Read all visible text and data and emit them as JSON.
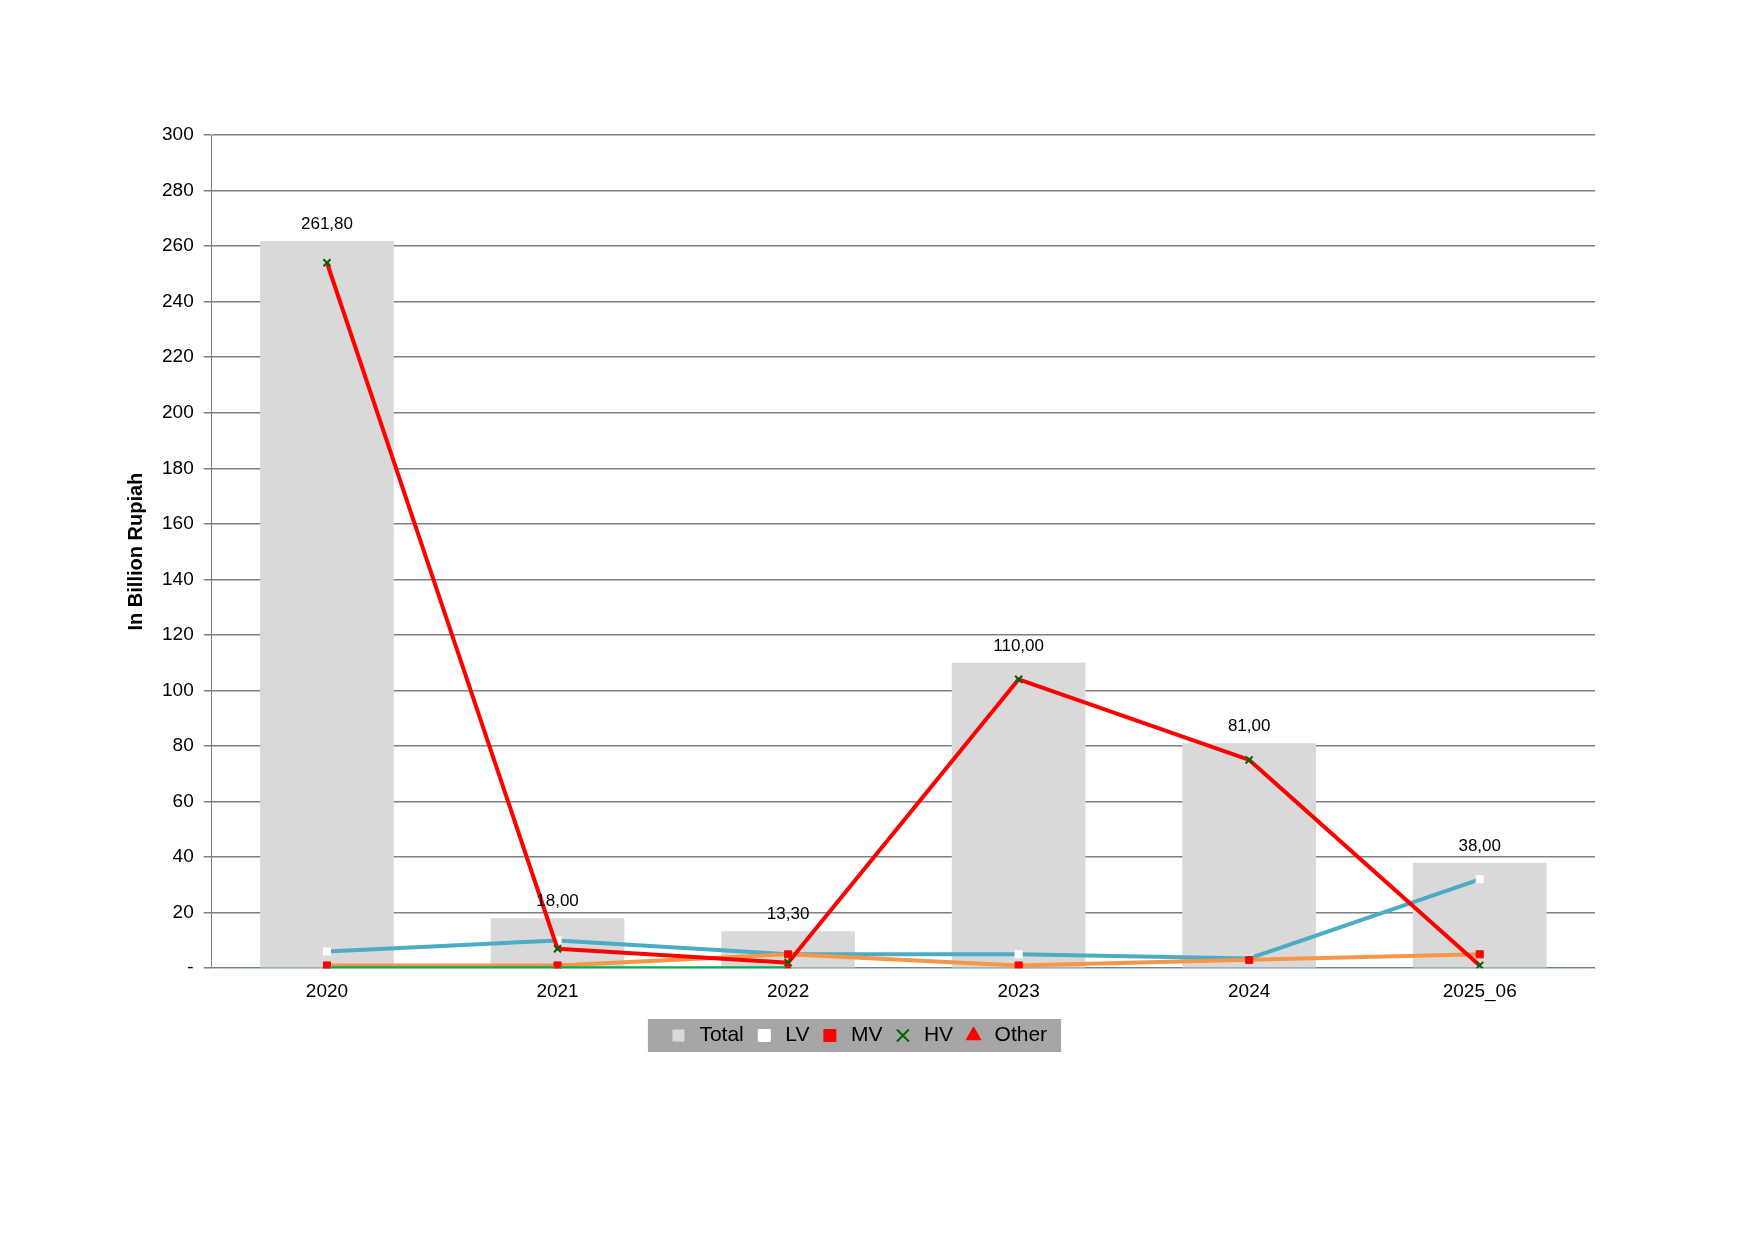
{
  "chart_data": {
    "type": "bar",
    "ylabel": "In Billion Rupiah",
    "categories": [
      "2020",
      "2021",
      "2022",
      "2023",
      "2024",
      "2025_06"
    ],
    "series": [
      {
        "name": "Total",
        "color": "#d9d9d9",
        "values": [
          261.8,
          18,
          13.3,
          110,
          81,
          38
        ],
        "value_labels": [
          "261,80",
          "18,00",
          "13,30",
          "110,00",
          "81,00",
          "38,00"
        ]
      },
      {
        "name": "LV",
        "type": "line",
        "color": "#4bacc6",
        "marker": "square",
        "values": [
          6,
          10,
          5,
          5,
          3.5,
          32
        ]
      },
      {
        "name": "MV",
        "type": "line",
        "color": "#f79646",
        "marker": "square",
        "values": [
          1,
          1,
          5,
          1,
          3,
          5
        ]
      },
      {
        "name": "HV",
        "type": "line",
        "color": "#ff0000",
        "marker": "cross",
        "values": [
          254,
          7,
          2,
          104,
          75,
          1
        ]
      },
      {
        "name": "Other",
        "type": "line",
        "color": "#00b050",
        "marker": "triangle",
        "values": [
          0,
          0,
          0,
          null,
          null,
          null
        ]
      }
    ],
    "ylim": [
      0,
      300
    ],
    "yticks": [
      {
        "value": 0,
        "label": "-"
      },
      20,
      40,
      60,
      80,
      100,
      120,
      140,
      160,
      180,
      200,
      220,
      240,
      260,
      280,
      300
    ],
    "grid": "y",
    "legend": "bottom"
  }
}
